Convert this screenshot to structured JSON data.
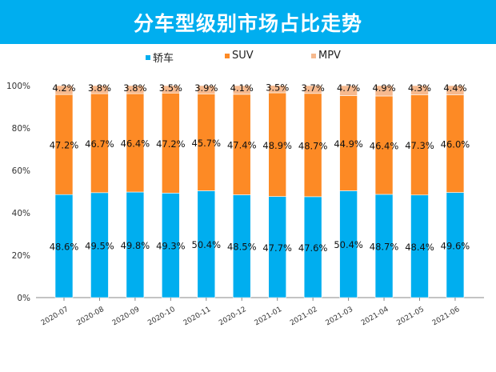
{
  "chart_data": {
    "type": "bar",
    "stacked": true,
    "title": "分车型级别市场占比走势",
    "categories": [
      "2020-07",
      "2020-08",
      "2020-09",
      "2020-10",
      "2020-11",
      "2020-12",
      "2021-01",
      "2021-02",
      "2021-03",
      "2021-04",
      "2021-05",
      "2021-06"
    ],
    "series": [
      {
        "name": "轿车",
        "color": "#00aeef",
        "values": [
          48.6,
          49.5,
          49.8,
          49.3,
          50.4,
          48.5,
          47.7,
          47.6,
          50.4,
          48.7,
          48.4,
          49.6
        ]
      },
      {
        "name": "SUV",
        "color": "#fd8a25",
        "values": [
          47.2,
          46.7,
          46.4,
          47.2,
          45.7,
          47.4,
          48.9,
          48.7,
          44.9,
          46.4,
          47.3,
          46.0
        ]
      },
      {
        "name": "MPV",
        "color": "#f6b98e",
        "values": [
          4.2,
          3.8,
          3.8,
          3.5,
          3.9,
          4.1,
          3.5,
          3.7,
          4.7,
          4.9,
          4.3,
          4.4
        ]
      }
    ],
    "yticks": [
      "0%",
      "20%",
      "40%",
      "60%",
      "80%",
      "100%"
    ],
    "ylim": [
      0,
      100
    ],
    "legend": "top",
    "grid": false,
    "title_bar_color": "#00aeef"
  }
}
